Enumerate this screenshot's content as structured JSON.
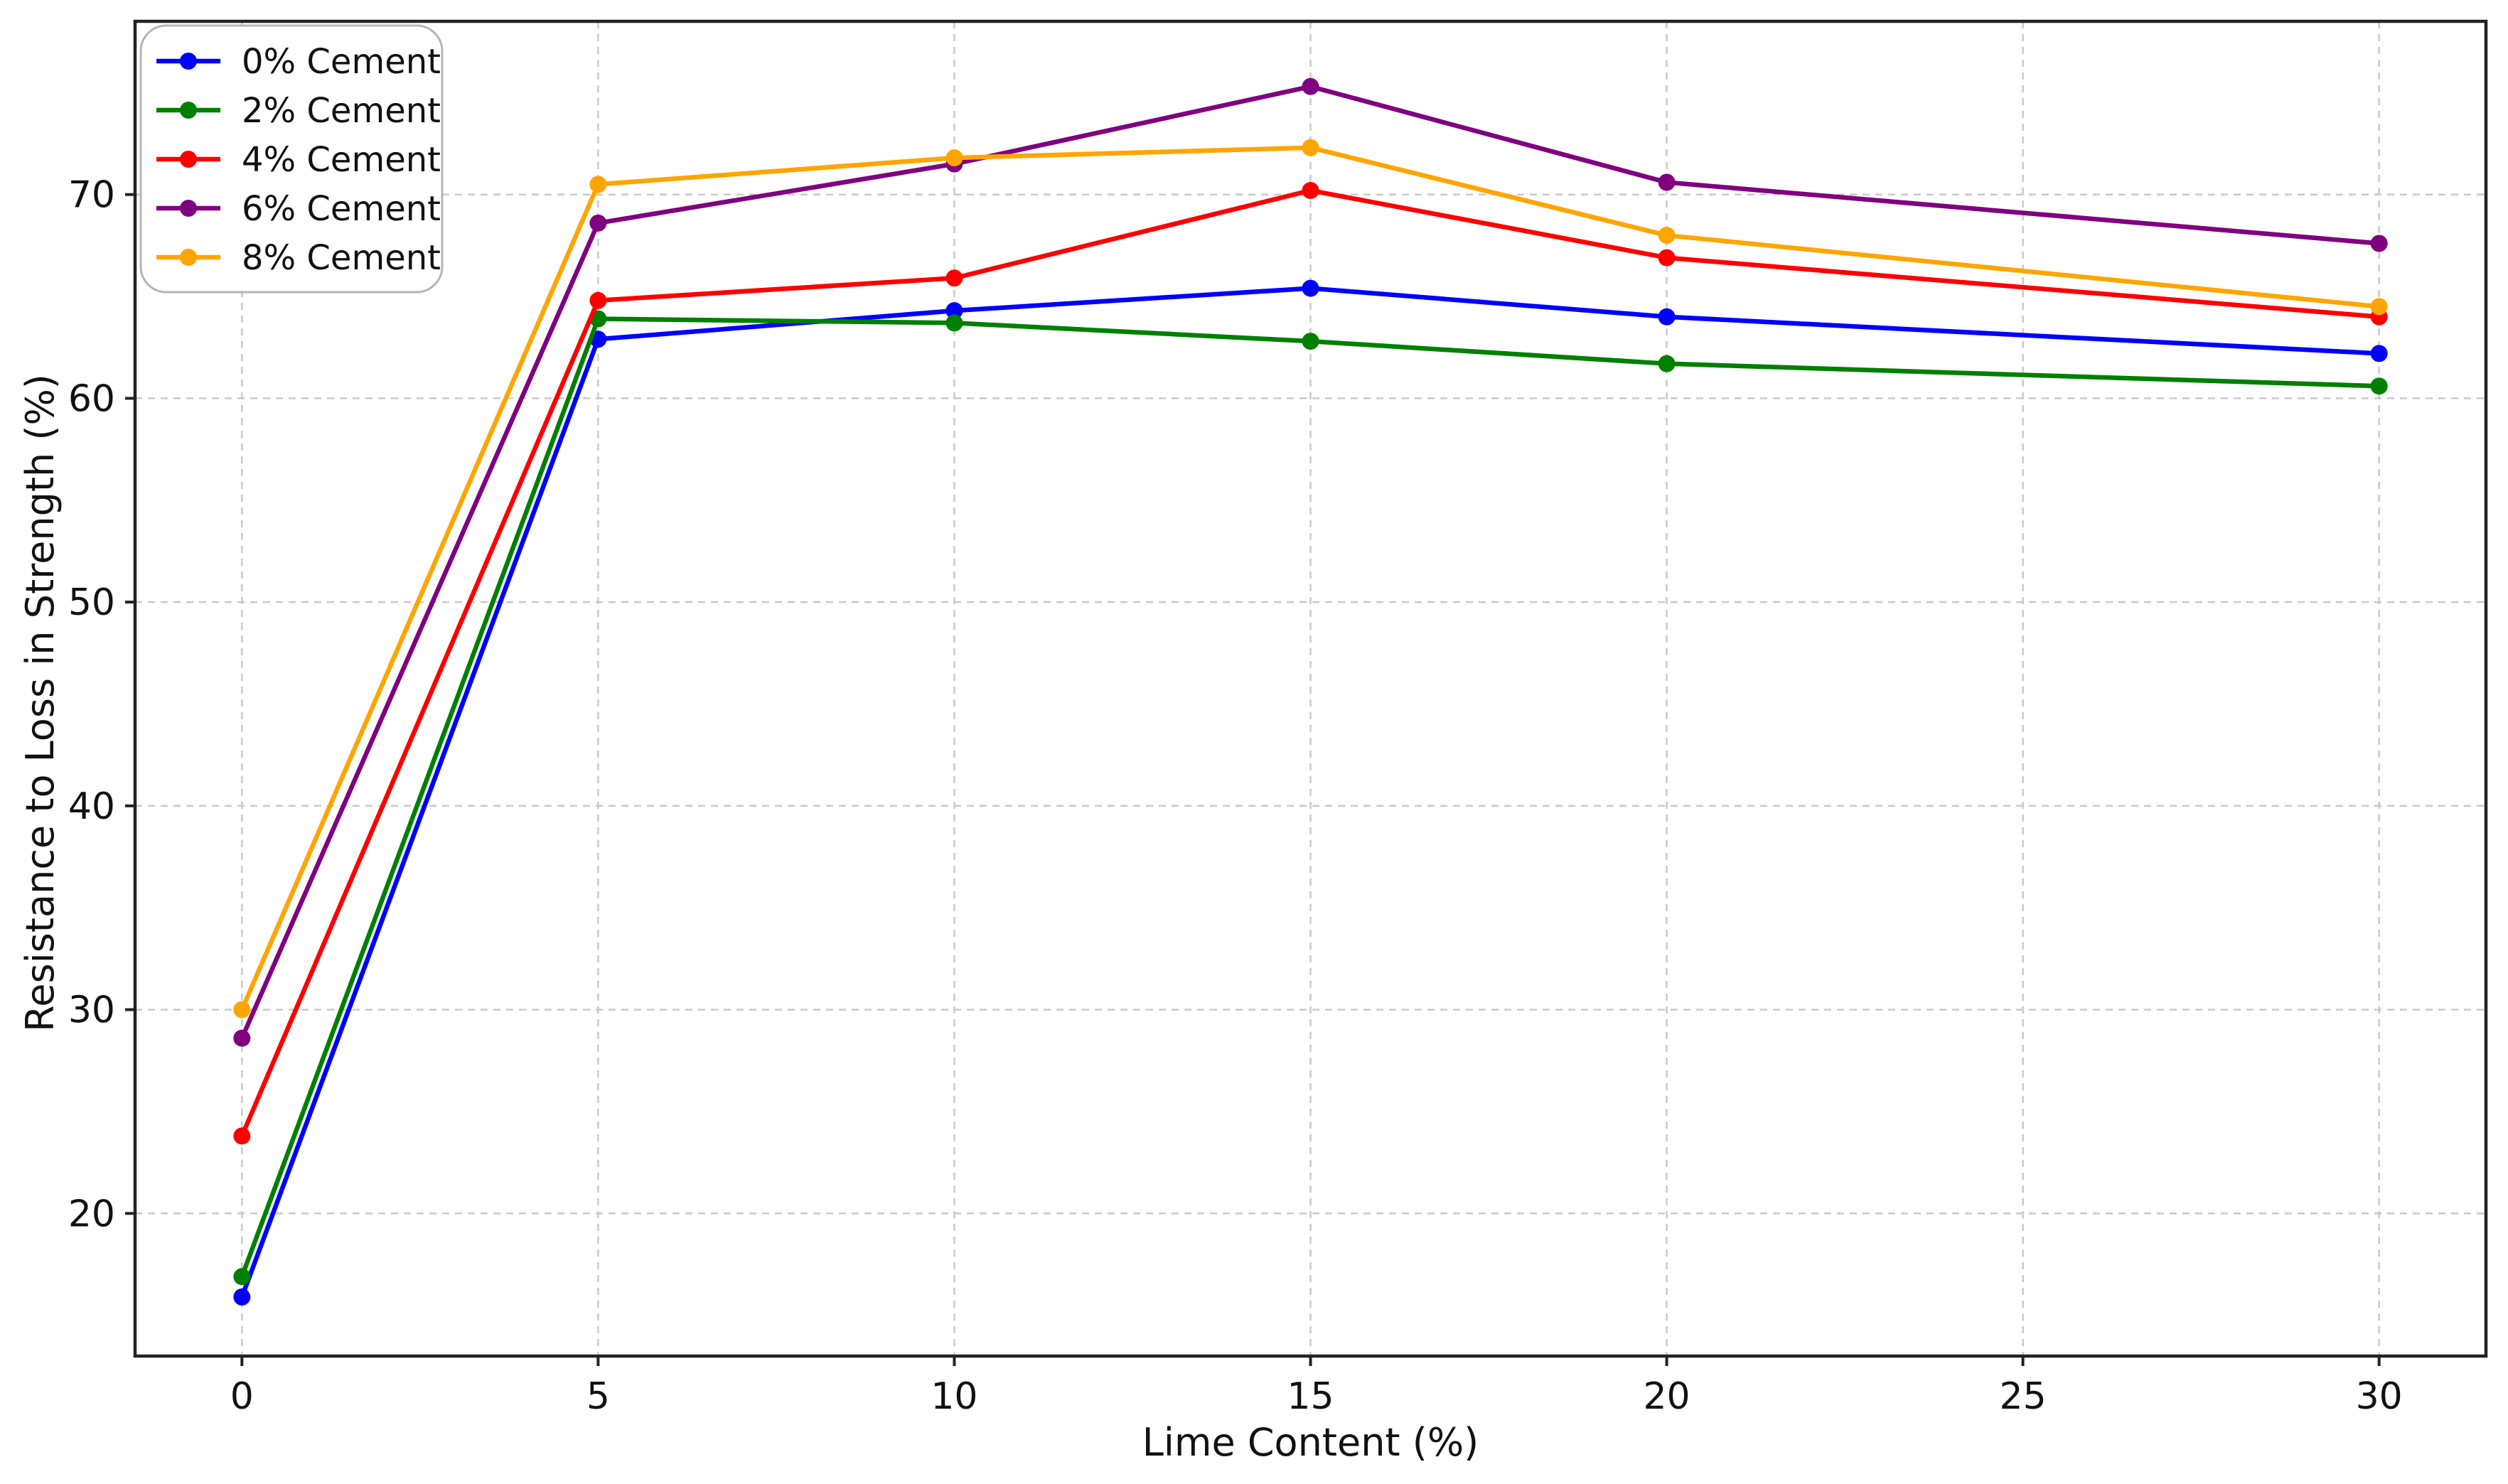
{
  "chart_data": {
    "type": "line",
    "title": "",
    "xlabel": "Lime Content (%)",
    "ylabel": "Resistance to Loss in Strength (%)",
    "xlim": [
      -1.5,
      31.5
    ],
    "ylim": [
      13,
      78.5
    ],
    "xticks": [
      0,
      5,
      10,
      15,
      20,
      25,
      30
    ],
    "yticks": [
      20,
      30,
      40,
      50,
      60,
      70
    ],
    "grid": true,
    "legend_position": "top-left",
    "x": [
      0,
      5,
      10,
      15,
      20,
      30
    ],
    "series": [
      {
        "name": "0% Cement",
        "color": "#0000ff",
        "values": [
          15.9,
          62.9,
          64.3,
          65.4,
          64.0,
          62.2
        ]
      },
      {
        "name": "2% Cement",
        "color": "#008000",
        "values": [
          16.9,
          63.9,
          63.7,
          62.8,
          61.7,
          60.6
        ]
      },
      {
        "name": "4% Cement",
        "color": "#ff0000",
        "values": [
          23.8,
          64.8,
          65.9,
          70.2,
          66.9,
          64.0
        ]
      },
      {
        "name": "6% Cement",
        "color": "#800080",
        "values": [
          28.6,
          68.6,
          71.5,
          75.3,
          70.6,
          67.6
        ]
      },
      {
        "name": "8% Cement",
        "color": "#ffa500",
        "values": [
          30.0,
          70.5,
          71.8,
          72.3,
          68.0,
          64.5
        ]
      }
    ]
  }
}
